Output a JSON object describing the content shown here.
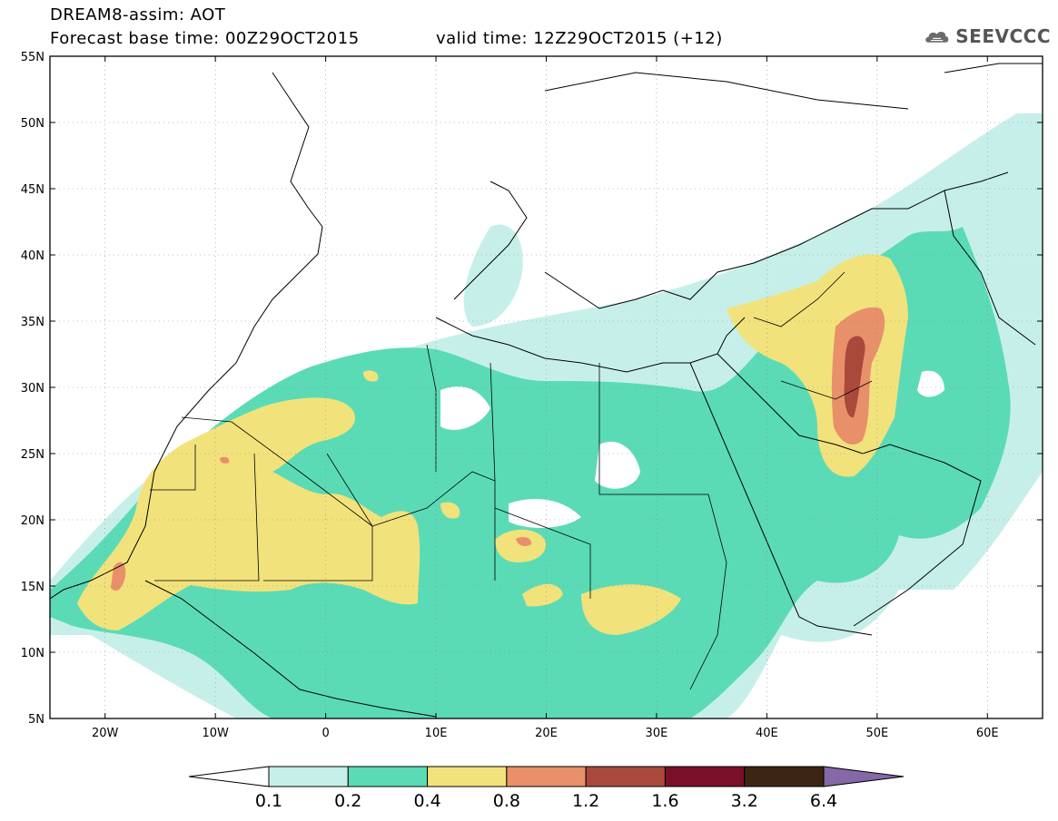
{
  "header": {
    "title": "DREAM8-assim: AOT",
    "base_time": "Forecast base time: 00Z29OCT2015",
    "valid_time": "valid time: 12Z29OCT2015 (+12)"
  },
  "logo": {
    "text": "SEEVCCC",
    "icon": "cloud-icon"
  },
  "map": {
    "lat_ticks": [
      "55N",
      "50N",
      "45N",
      "40N",
      "35N",
      "30N",
      "25N",
      "20N",
      "15N",
      "10N",
      "5N"
    ],
    "lon_ticks": [
      "20W",
      "10W",
      "0",
      "10E",
      "20E",
      "30E",
      "40E",
      "50E",
      "60E"
    ],
    "lat_range": [
      5,
      55
    ],
    "lon_range": [
      -25,
      65
    ],
    "grid": "dotted"
  },
  "legend": {
    "labels": [
      "0.1",
      "0.2",
      "0.4",
      "0.8",
      "1.2",
      "1.6",
      "3.2",
      "6.4"
    ],
    "colors": [
      "#ffffff",
      "#c7efe9",
      "#5bdbb5",
      "#f2e27c",
      "#e8906a",
      "#a9493b",
      "#7a0f2a",
      "#3d2513",
      "#8468a8"
    ]
  },
  "field_colors": {
    "c01": "#c7efe9",
    "c02": "#5bdbb5",
    "c04": "#f2e27c",
    "c08": "#e8906a",
    "c12": "#a9493b"
  }
}
